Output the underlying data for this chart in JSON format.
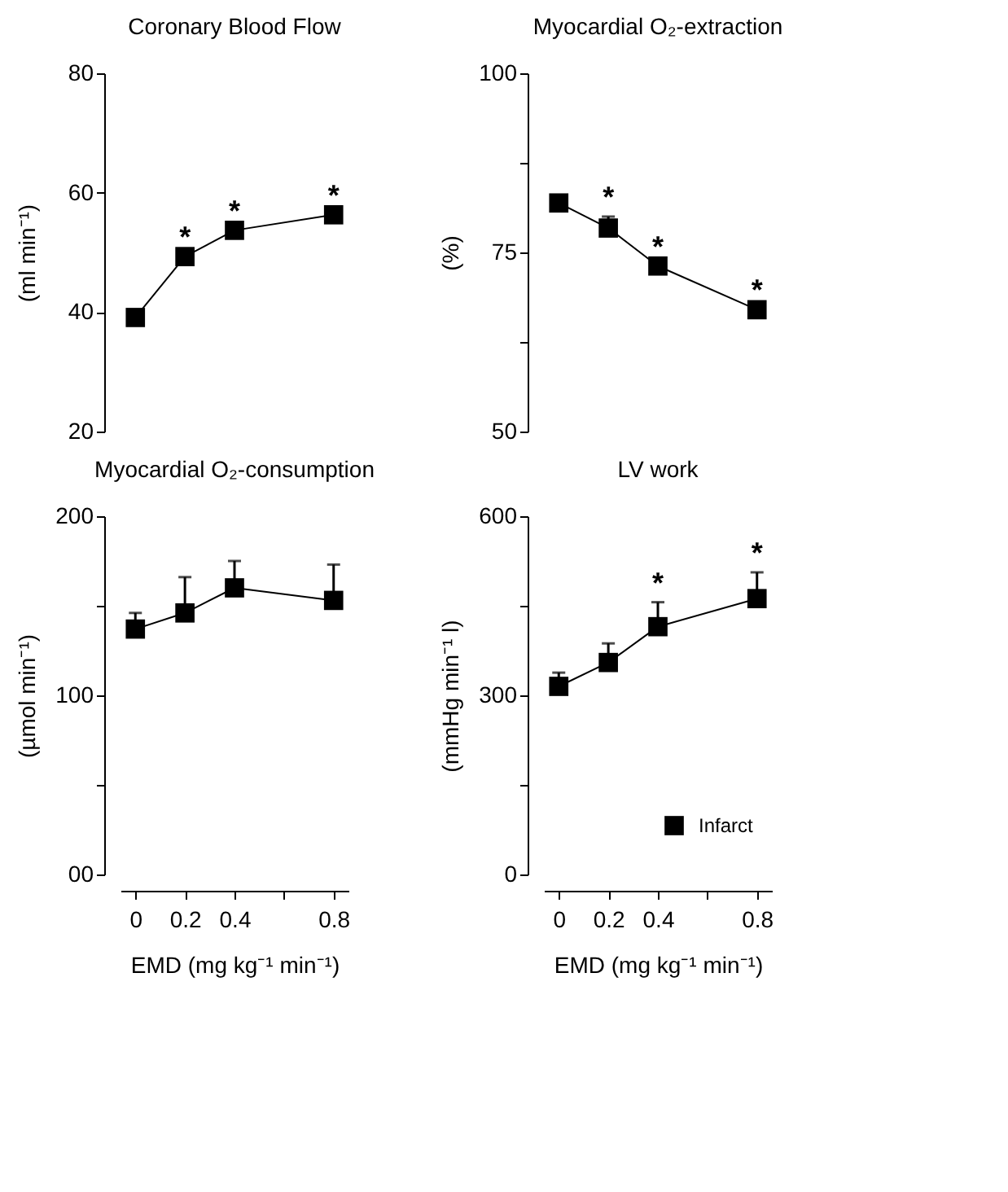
{
  "chart_data": [
    {
      "type": "line",
      "title": "Coronary Blood Flow",
      "ylabel": "(ml min⁻¹)",
      "x": [
        0,
        0.2,
        0.4,
        0.8
      ],
      "ylim": [
        20,
        80
      ],
      "yticks": [
        20,
        40,
        60,
        80
      ],
      "tick_labels": "y",
      "marker": "square",
      "grid": false,
      "legend": false,
      "series": [
        {
          "color": "#000000",
          "values": [
            39.1,
            49.3,
            53.7,
            56.3
          ],
          "value_labels": [
            null,
            "*",
            "*",
            "*"
          ]
        }
      ]
    },
    {
      "type": "line",
      "title": "Myocardial O₂-extraction",
      "ylabel": "(%)",
      "x": [
        0,
        0.2,
        0.4,
        0.8
      ],
      "ylim": [
        50,
        100
      ],
      "yticks": [
        50,
        {
          "value": 62.5,
          "label": null
        },
        75,
        {
          "value": 87.5,
          "label": null
        },
        100
      ],
      "tick_labels": "y",
      "marker": "square",
      "grid": false,
      "legend": false,
      "series": [
        {
          "color": "#000000",
          "values": [
            81.9,
            78.4,
            73.1,
            67.0
          ],
          "errors": [
            null,
            [
              78.4,
              80.0
            ],
            null,
            null
          ],
          "value_labels": [
            null,
            "*",
            "*",
            "*"
          ]
        }
      ]
    },
    {
      "type": "line",
      "title": "Myocardial O₂-consumption",
      "xlabel": "EMD (mg kg⁻¹ min⁻¹)",
      "ylabel": "(µmol min⁻¹)",
      "x": [
        0,
        0.2,
        0.4,
        0.8
      ],
      "xlim": [
        -0.06,
        0.86
      ],
      "xticks": [
        0,
        0.2,
        0.4,
        {
          "value": 0.6,
          "label": null
        },
        0.8
      ],
      "ylim": [
        0,
        200
      ],
      "yticks": [
        {
          "value": 0,
          "label": "00"
        },
        {
          "value": 50,
          "label": null
        },
        100,
        {
          "value": 150,
          "label": null
        },
        200
      ],
      "marker": "square",
      "grid": false,
      "legend": false,
      "series": [
        {
          "color": "#000000",
          "values": [
            137,
            146,
            160,
            153
          ],
          "errors": [
            [
              137,
              146
            ],
            [
              146,
              166
            ],
            [
              160,
              175
            ],
            [
              153,
              173
            ]
          ]
        }
      ]
    },
    {
      "type": "line",
      "title": "LV work",
      "xlabel": "EMD (mg kg⁻¹ min⁻¹)",
      "ylabel": "(mmHg min⁻¹ l)",
      "x": [
        0,
        0.2,
        0.4,
        0.8
      ],
      "xlim": [
        -0.06,
        0.86
      ],
      "xticks": [
        0,
        0.2,
        0.4,
        {
          "value": 0.6,
          "label": null
        },
        0.8
      ],
      "ylim": [
        0,
        600
      ],
      "yticks": [
        0,
        {
          "value": 150,
          "label": null
        },
        300,
        {
          "value": 450,
          "label": null
        },
        600
      ],
      "marker": "square",
      "grid": false,
      "legend": "bottom right",
      "series": [
        {
          "name": "Infarct",
          "color": "#000000",
          "values": [
            315,
            355,
            415,
            462
          ],
          "errors": [
            [
              315,
              338
            ],
            [
              355,
              387
            ],
            [
              415,
              456
            ],
            [
              462,
              506
            ]
          ],
          "value_labels": [
            null,
            null,
            "*",
            "*"
          ]
        }
      ]
    }
  ]
}
